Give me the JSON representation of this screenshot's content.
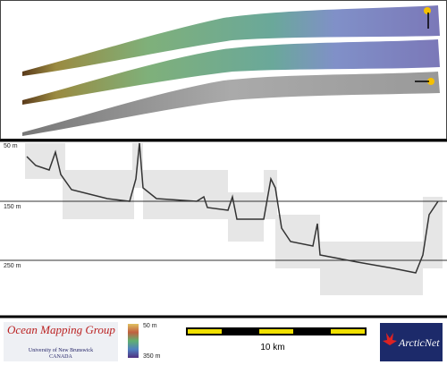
{
  "depth_axis": {
    "labels": [
      "50 m",
      "150 m",
      "250 m"
    ]
  },
  "footer": {
    "organization": "Ocean Mapping Group",
    "university": "University of New Brunswick",
    "country": "CANADA",
    "depth_scale": {
      "top": "50 m",
      "bottom": "350 m"
    },
    "scale_bar": "10 km",
    "sponsor": "ArcticNet"
  }
}
